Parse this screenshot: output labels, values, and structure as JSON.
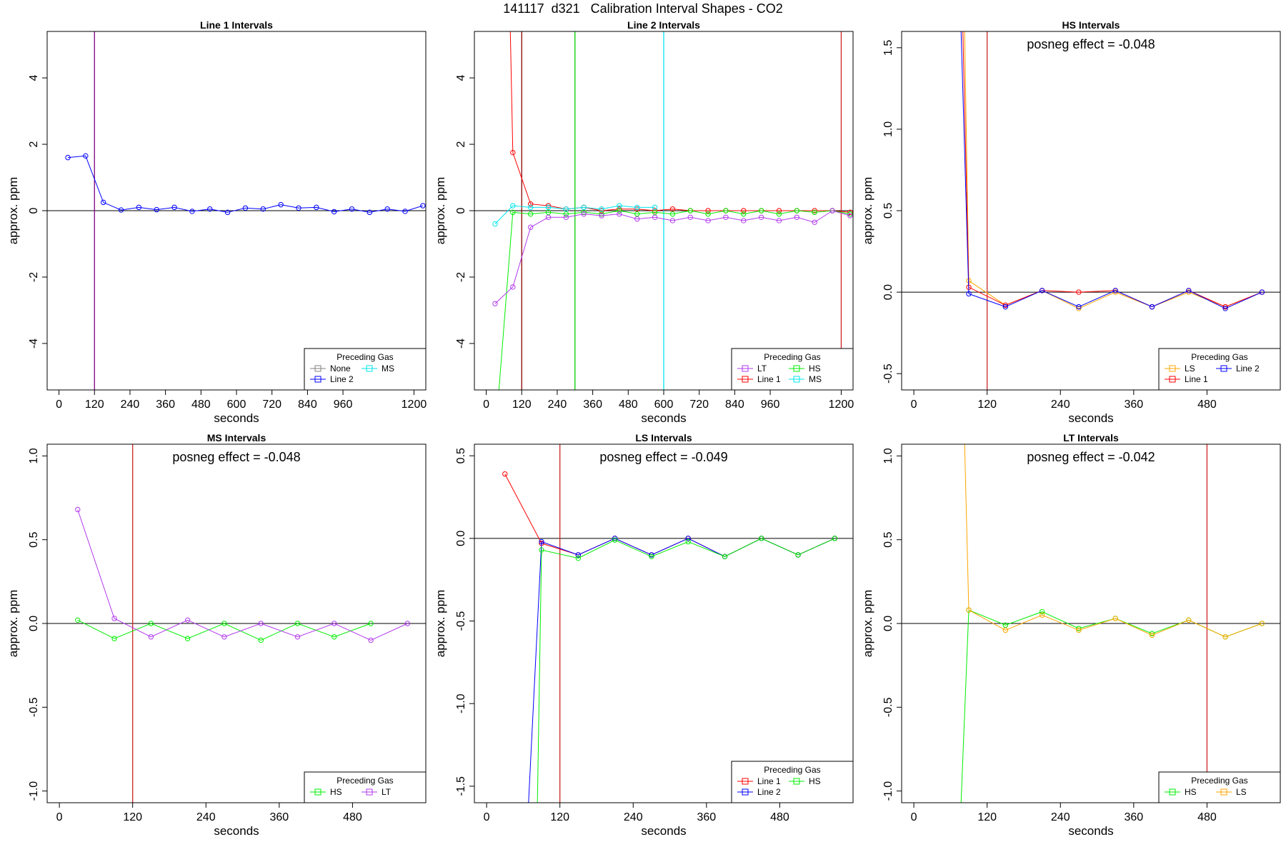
{
  "page": {
    "title": "141117  d321   Calibration Interval Shapes - CO2"
  },
  "chart_data": [
    {
      "type": "line",
      "title": "Line 1 Intervals",
      "xlabel": "seconds",
      "ylabel": "approx. ppm",
      "xlim": [
        -40,
        1240
      ],
      "ylim": [
        -5.4,
        5.4
      ],
      "xticks": [
        0,
        120,
        240,
        360,
        480,
        600,
        720,
        840,
        960,
        1200
      ],
      "yticks": [
        -4,
        -2,
        0,
        2,
        4
      ],
      "hline": 0,
      "vlines": [
        {
          "x": 120,
          "color": "#800080"
        }
      ],
      "legend": {
        "title": "Preceding Gas",
        "position": "bottom-right",
        "cols": 2,
        "entries": [
          {
            "label": "None",
            "color": "#808080"
          },
          {
            "label": "Line 2",
            "color": "#0000ff"
          },
          {
            "label": "MS",
            "color": "#00e5ee"
          }
        ]
      },
      "series": [
        {
          "name": "Line 2",
          "color": "#0000ff",
          "x": [
            30,
            90,
            150,
            210,
            270,
            330,
            390,
            450,
            510,
            570,
            630,
            690,
            750,
            810,
            870,
            930,
            990,
            1050,
            1110,
            1170,
            1230
          ],
          "y": [
            1.6,
            1.65,
            0.25,
            0.02,
            0.1,
            0.03,
            0.1,
            -0.02,
            0.05,
            -0.05,
            0.08,
            0.05,
            0.18,
            0.08,
            0.1,
            -0.03,
            0.05,
            -0.05,
            0.05,
            -0.02,
            0.15
          ]
        }
      ]
    },
    {
      "type": "line",
      "title": "Line 2 Intervals",
      "xlabel": "seconds",
      "ylabel": "approx. ppm",
      "xlim": [
        -40,
        1240
      ],
      "ylim": [
        -5.4,
        5.4
      ],
      "xticks": [
        0,
        120,
        240,
        360,
        480,
        600,
        720,
        840,
        960,
        1200
      ],
      "yticks": [
        -4,
        -2,
        0,
        2,
        4
      ],
      "hline": 0,
      "vlines": [
        {
          "x": 120,
          "color": "#8b0000"
        },
        {
          "x": 300,
          "color": "#00cd00"
        },
        {
          "x": 600,
          "color": "#00e5ee"
        },
        {
          "x": 1200,
          "color": "#cd2626"
        }
      ],
      "legend": {
        "title": "Preceding Gas",
        "position": "bottom-right",
        "cols": 2,
        "entries": [
          {
            "label": "LT",
            "color": "#b23aee"
          },
          {
            "label": "Line 1",
            "color": "#ff0000"
          },
          {
            "label": "HS",
            "color": "#00ee00"
          },
          {
            "label": "MS",
            "color": "#00e5ee"
          }
        ]
      },
      "series": [
        {
          "name": "Line 1",
          "color": "#ff0000",
          "x": [
            80,
            90,
            150,
            210,
            270,
            330,
            390,
            450,
            510,
            570,
            630,
            690,
            750,
            810,
            870,
            930,
            990,
            1050,
            1110,
            1170,
            1230
          ],
          "y": [
            6.0,
            1.75,
            0.2,
            0.15,
            0.05,
            0.1,
            0.0,
            0.05,
            0.05,
            0.0,
            0.05,
            0.0,
            0.0,
            0.0,
            0.0,
            0.0,
            0.0,
            0.0,
            0.0,
            0.0,
            -0.05
          ]
        },
        {
          "name": "HS",
          "color": "#00ee00",
          "x": [
            42,
            90,
            150,
            210,
            270,
            330,
            390,
            450,
            510,
            570,
            630,
            690,
            750,
            810,
            870,
            930,
            990,
            1050,
            1110,
            1170,
            1230
          ],
          "y": [
            -5.5,
            -0.05,
            -0.1,
            -0.05,
            -0.1,
            -0.05,
            -0.1,
            0.0,
            -0.1,
            -0.05,
            -0.1,
            0.0,
            -0.1,
            0.0,
            -0.1,
            0.0,
            -0.1,
            0.0,
            -0.05,
            0.0,
            -0.1
          ]
        },
        {
          "name": "MS",
          "color": "#00e5ee",
          "x": [
            30,
            90,
            150,
            210,
            270,
            330,
            390,
            450,
            510,
            570
          ],
          "y": [
            -0.4,
            0.15,
            0.1,
            0.1,
            0.05,
            0.1,
            0.05,
            0.15,
            0.1,
            0.1
          ]
        },
        {
          "name": "LT",
          "color": "#b23aee",
          "x": [
            30,
            90,
            150,
            210,
            270,
            330,
            390,
            450,
            510,
            570,
            630,
            690,
            750,
            810,
            870,
            930,
            990,
            1050,
            1110,
            1170,
            1230
          ],
          "y": [
            -2.8,
            -2.3,
            -0.5,
            -0.2,
            -0.2,
            -0.1,
            -0.15,
            -0.1,
            -0.25,
            -0.2,
            -0.3,
            -0.2,
            -0.3,
            -0.2,
            -0.3,
            -0.2,
            -0.3,
            -0.2,
            -0.35,
            0.0,
            -0.15
          ]
        }
      ]
    },
    {
      "type": "line",
      "title": "HS Intervals",
      "annotation": "posneg effect = -0.048",
      "xlabel": "seconds",
      "ylabel": "approx. ppm",
      "xlim": [
        -20,
        600
      ],
      "ylim": [
        -0.6,
        1.6
      ],
      "xticks": [
        0,
        120,
        240,
        360,
        480
      ],
      "yticks": [
        -0.5,
        0.0,
        0.5,
        1.0,
        1.5
      ],
      "hline": 0,
      "vlines": [
        {
          "x": 120,
          "color": "#cd2626"
        }
      ],
      "legend": {
        "title": "Preceding Gas",
        "position": "bottom-right",
        "cols": 2,
        "entries": [
          {
            "label": "LS",
            "color": "#ffa500"
          },
          {
            "label": "Line 1",
            "color": "#ff0000"
          },
          {
            "label": "Line 2",
            "color": "#0000ff"
          }
        ]
      },
      "series": [
        {
          "name": "LS",
          "color": "#ffa500",
          "x": [
            83,
            90,
            150,
            210,
            270,
            330,
            390,
            450,
            510,
            570
          ],
          "y": [
            1.65,
            0.07,
            -0.08,
            0.01,
            -0.1,
            0.0,
            -0.09,
            0.0,
            -0.09,
            0.0
          ]
        },
        {
          "name": "Line 1",
          "color": "#ff0000",
          "x": [
            80,
            90,
            150,
            210,
            270,
            330,
            390,
            450,
            510,
            570
          ],
          "y": [
            1.65,
            0.03,
            -0.08,
            0.01,
            0.0,
            0.01,
            -0.09,
            0.01,
            -0.09,
            0.0
          ]
        },
        {
          "name": "Line 2",
          "color": "#0000ff",
          "x": [
            77,
            90,
            150,
            210,
            270,
            330,
            390,
            450,
            510,
            570
          ],
          "y": [
            1.65,
            -0.01,
            -0.09,
            0.01,
            -0.09,
            0.01,
            -0.09,
            0.01,
            -0.1,
            0.0
          ]
        }
      ]
    },
    {
      "type": "line",
      "title": "MS Intervals",
      "annotation": "posneg effect = -0.048",
      "xlabel": "seconds",
      "ylabel": "approx. ppm",
      "xlim": [
        -20,
        600
      ],
      "ylim": [
        -1.07,
        1.07
      ],
      "xticks": [
        0,
        120,
        240,
        360,
        480
      ],
      "yticks": [
        -1.0,
        -0.5,
        0.0,
        0.5,
        1.0
      ],
      "hline": 0,
      "vlines": [
        {
          "x": 120,
          "color": "#cd2626"
        }
      ],
      "legend": {
        "title": "Preceding Gas",
        "position": "bottom-right",
        "cols": 2,
        "entries": [
          {
            "label": "HS",
            "color": "#00ee00"
          },
          {
            "label": "LT",
            "color": "#b23aee"
          }
        ]
      },
      "series": [
        {
          "name": "HS",
          "color": "#00ee00",
          "x": [
            30,
            90,
            150,
            210,
            270,
            330,
            390,
            450,
            510
          ],
          "y": [
            0.02,
            -0.09,
            0.0,
            -0.09,
            0.0,
            -0.1,
            0.0,
            -0.08,
            0.0
          ]
        },
        {
          "name": "LT",
          "color": "#b23aee",
          "x": [
            90,
            150,
            210,
            270,
            330,
            390,
            450,
            510,
            570,
            30
          ],
          "y": [
            0.03,
            -0.08,
            0.02,
            -0.08,
            0.0,
            -0.08,
            0.0,
            -0.1,
            0.0,
            0.68
          ],
          "order": [
            9,
            0,
            1,
            2,
            3,
            4,
            5,
            6,
            7,
            8
          ]
        }
      ]
    },
    {
      "type": "line",
      "title": "LS Intervals",
      "annotation": "posneg effect = -0.049",
      "xlabel": "seconds",
      "ylabel": "approx. ppm",
      "xlim": [
        -20,
        600
      ],
      "ylim": [
        -1.6,
        0.57
      ],
      "xticks": [
        0,
        120,
        240,
        360,
        480
      ],
      "yticks": [
        -1.5,
        -1.0,
        -0.5,
        0.0,
        0.5
      ],
      "hline": 0,
      "vlines": [
        {
          "x": 120,
          "color": "#cd2626"
        }
      ],
      "legend": {
        "title": "Preceding Gas",
        "position": "bottom-right",
        "cols": 2,
        "entries": [
          {
            "label": "Line 1",
            "color": "#ff0000"
          },
          {
            "label": "Line 2",
            "color": "#0000ff"
          },
          {
            "label": "HS",
            "color": "#00ee00"
          }
        ]
      },
      "series": [
        {
          "name": "Line 1",
          "color": "#ff0000",
          "x": [
            30,
            90,
            150,
            210,
            270,
            330,
            390,
            450,
            510,
            570
          ],
          "y": [
            0.39,
            -0.03,
            -0.1,
            0.0,
            -0.1,
            0.0,
            -0.11,
            0.0,
            -0.1,
            0.0
          ]
        },
        {
          "name": "Line 2",
          "color": "#0000ff",
          "x": [
            68,
            90,
            150,
            210,
            270,
            330,
            390,
            450,
            510,
            570
          ],
          "y": [
            -1.65,
            -0.02,
            -0.1,
            0.0,
            -0.1,
            0.0,
            -0.11,
            0.0,
            -0.1,
            0.0
          ]
        },
        {
          "name": "HS",
          "color": "#00ee00",
          "x": [
            83,
            90,
            150,
            210,
            270,
            330,
            390,
            450,
            510,
            570
          ],
          "y": [
            -1.65,
            -0.07,
            -0.12,
            -0.01,
            -0.11,
            -0.02,
            -0.11,
            0.0,
            -0.1,
            0.0
          ]
        }
      ]
    },
    {
      "type": "line",
      "title": "LT Intervals",
      "annotation": "posneg effect = -0.042",
      "xlabel": "seconds",
      "ylabel": "approx. ppm",
      "xlim": [
        -20,
        600
      ],
      "ylim": [
        -1.07,
        1.07
      ],
      "xticks": [
        0,
        120,
        240,
        360,
        480
      ],
      "yticks": [
        -1.0,
        -0.5,
        0.0,
        0.5,
        1.0
      ],
      "hline": 0,
      "vlines": [
        {
          "x": 480,
          "color": "#cd2626"
        }
      ],
      "legend": {
        "title": "Preceding Gas",
        "position": "bottom-right",
        "cols": 2,
        "entries": [
          {
            "label": "HS",
            "color": "#00ee00"
          },
          {
            "label": "LS",
            "color": "#ffa500"
          }
        ]
      },
      "series": [
        {
          "name": "HS",
          "color": "#00ee00",
          "x": [
            77,
            90,
            150,
            210,
            270,
            330,
            390,
            450,
            510,
            570
          ],
          "y": [
            -1.1,
            0.08,
            -0.01,
            0.07,
            -0.03,
            0.03,
            -0.06,
            0.02,
            -0.08,
            0.0
          ]
        },
        {
          "name": "LS",
          "color": "#ffa500",
          "x": [
            83,
            90,
            150,
            210,
            270,
            330,
            390,
            450,
            510,
            570
          ],
          "y": [
            1.1,
            0.08,
            -0.04,
            0.05,
            -0.04,
            0.03,
            -0.07,
            0.02,
            -0.08,
            0.0
          ]
        }
      ]
    }
  ]
}
